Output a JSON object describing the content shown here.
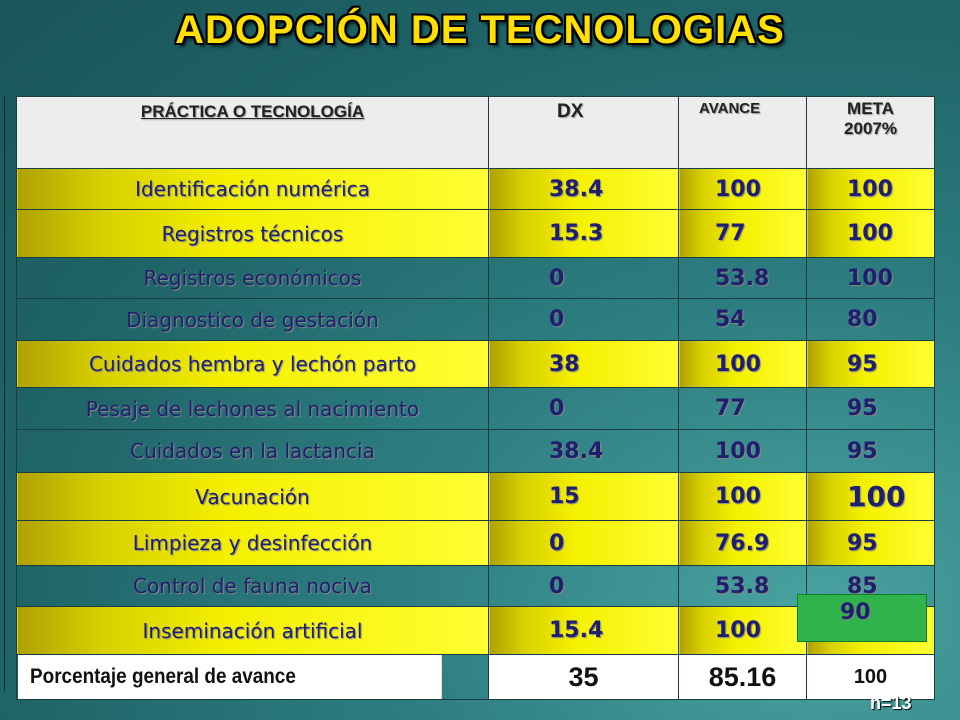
{
  "title": "ADOPCIÓN DE TECNOLOGIAS",
  "headers": {
    "practice": "PRÁCTICA O TECNOLOGÍA",
    "dx": "DX",
    "avance": "AVANCE",
    "meta_line1": "META",
    "meta_line2": "2007%"
  },
  "rows": [
    {
      "name": "Identificación numérica",
      "dx": "38.4",
      "avance": "100",
      "meta": "100"
    },
    {
      "name": "Registros técnicos",
      "dx": "15.3",
      "avance": "77",
      "meta": "100"
    },
    {
      "name": "Registros económicos",
      "dx": "0",
      "avance": "53.8",
      "meta": "100"
    },
    {
      "name": "Diagnostico de gestación",
      "dx": "0",
      "avance": "54",
      "meta": "80"
    },
    {
      "name": "Cuidados hembra y lechón parto",
      "dx": "38",
      "avance": "100",
      "meta": "95"
    },
    {
      "name": "Pesaje de lechones al nacimiento",
      "dx": "0",
      "avance": "77",
      "meta": "95"
    },
    {
      "name": "Cuidados en la lactancia",
      "dx": "38.4",
      "avance": "100",
      "meta": "95"
    },
    {
      "name": "Vacunación",
      "dx": "15",
      "avance": "100",
      "meta": "100"
    },
    {
      "name": "Limpieza y desinfección",
      "dx": "0",
      "avance": "76.9",
      "meta": "95"
    },
    {
      "name": "Control de fauna nociva",
      "dx": "0",
      "avance": "53.8",
      "meta": "85"
    },
    {
      "name": "Inseminación artificial",
      "dx": "15.4",
      "avance": "100",
      "meta": "90"
    }
  ],
  "footer": {
    "label": "Porcentaje general de avance",
    "dx": "35",
    "avance": "85.16",
    "meta": "100"
  },
  "sample_size": "n=13",
  "colors": {
    "title": "#ffe000",
    "row_highlight": "#ffff33",
    "meta_highlight": "#2fb34a",
    "text": "#1f1f6e"
  }
}
